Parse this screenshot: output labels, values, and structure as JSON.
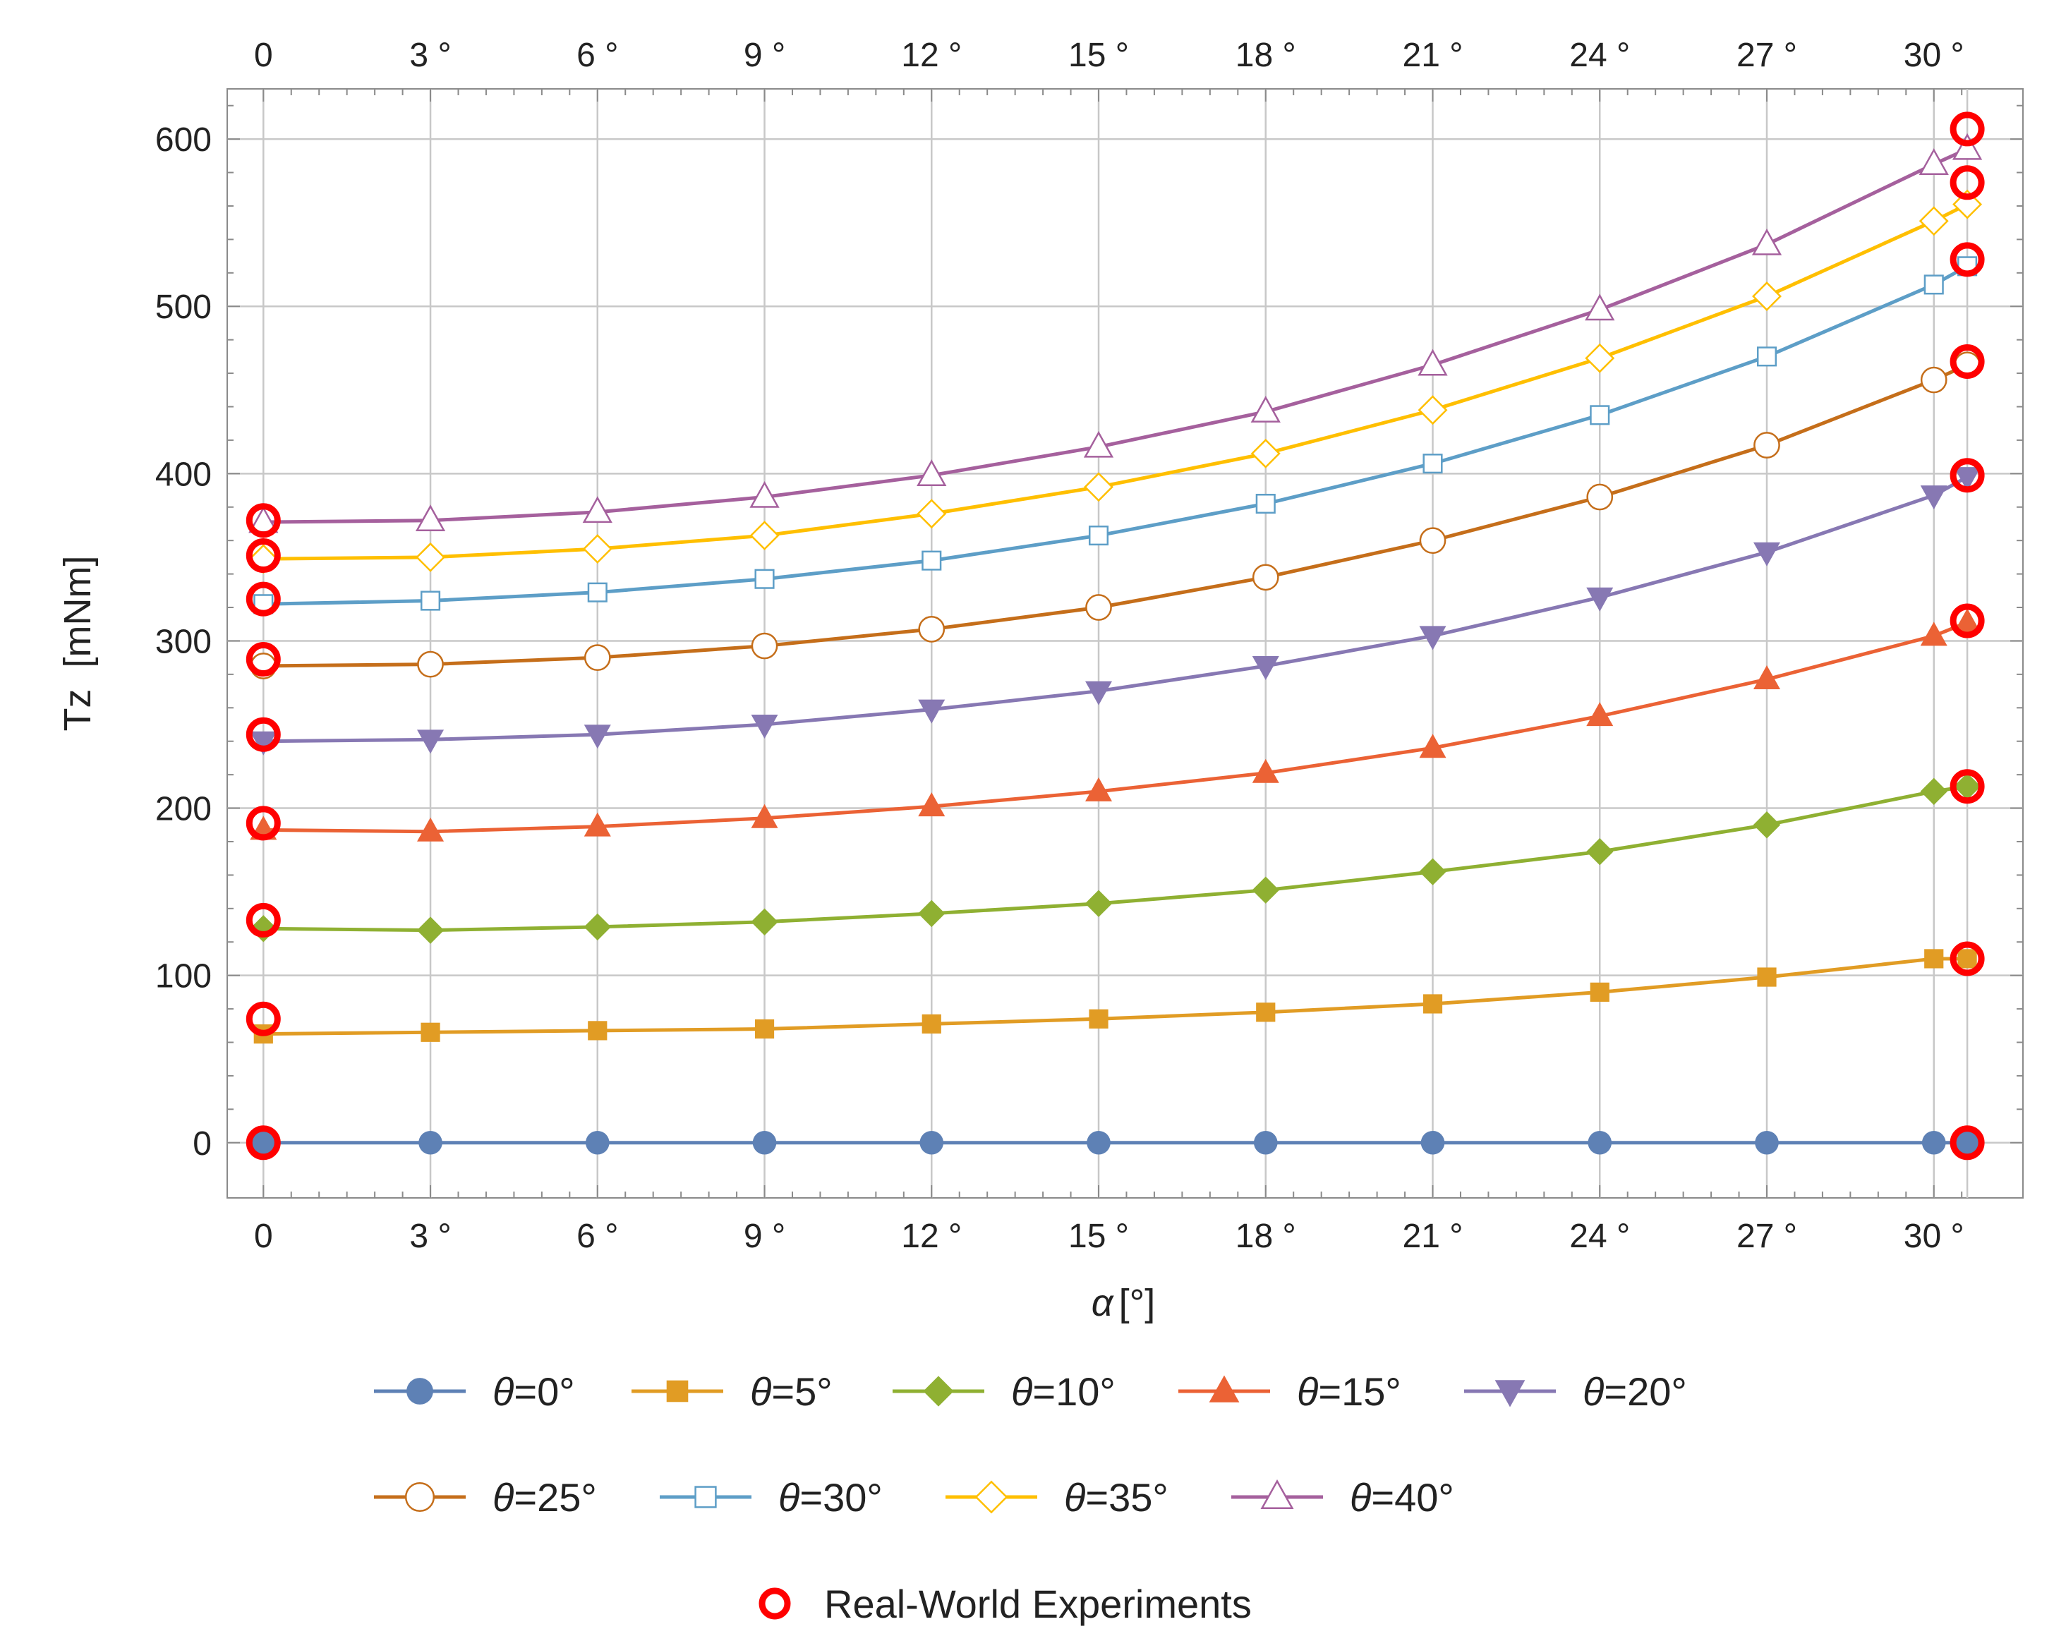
{
  "chart_data": {
    "type": "line",
    "title": "",
    "xlabel_symbol": "α",
    "xlabel_unit": "[°]",
    "ylabel": "Tz  [mNm]",
    "x": [
      0,
      3,
      6,
      9,
      12,
      15,
      18,
      21,
      24,
      27,
      30
    ],
    "x_tick_labels": [
      "0",
      "3 °",
      "6 °",
      "9 °",
      "12 °",
      "15 °",
      "18 °",
      "21 °",
      "24 °",
      "27 °",
      "30 °"
    ],
    "xlim": [
      -0.65,
      31.6
    ],
    "y_ticks": [
      0,
      100,
      200,
      300,
      400,
      500,
      600
    ],
    "y_tick_labels": [
      "0",
      "100",
      "200",
      "300",
      "400",
      "500",
      "600"
    ],
    "ylim": [
      -33,
      630
    ],
    "grid": true,
    "legend_position": "bottom",
    "series": [
      {
        "name": "θ=0°",
        "symbol": "θ",
        "label_suffix": "=0°",
        "color": "#5e81b5",
        "marker": "circle-filled",
        "values": [
          0,
          0,
          0,
          0,
          0,
          0,
          0,
          0,
          0,
          0,
          0
        ],
        "end_value": 0
      },
      {
        "name": "θ=5°",
        "symbol": "θ",
        "label_suffix": "=5°",
        "color": "#e19c24",
        "marker": "square-filled",
        "values": [
          65,
          66,
          67,
          68,
          71,
          74,
          78,
          83,
          90,
          99,
          110
        ],
        "end_value": 110
      },
      {
        "name": "θ=10°",
        "symbol": "θ",
        "label_suffix": "=10°",
        "color": "#8fb032",
        "marker": "diamond-filled",
        "values": [
          128,
          127,
          129,
          132,
          137,
          143,
          151,
          162,
          174,
          190,
          210
        ],
        "end_value": 213
      },
      {
        "name": "θ=15°",
        "symbol": "θ",
        "label_suffix": "=15°",
        "color": "#eb6235",
        "marker": "triangle-up-filled",
        "values": [
          187,
          186,
          189,
          194,
          201,
          210,
          221,
          236,
          255,
          277,
          303
        ],
        "end_value": 311
      },
      {
        "name": "θ=20°",
        "symbol": "θ",
        "label_suffix": "=20°",
        "color": "#8778b3",
        "marker": "triangle-down-filled",
        "values": [
          240,
          241,
          244,
          250,
          259,
          270,
          285,
          303,
          326,
          353,
          387
        ],
        "end_value": 398
      },
      {
        "name": "θ=25°",
        "symbol": "θ",
        "label_suffix": "=25°",
        "color": "#c56e1a",
        "marker": "circle-open",
        "values": [
          285,
          286,
          290,
          297,
          307,
          320,
          338,
          360,
          386,
          417,
          456
        ],
        "end_value": 465
      },
      {
        "name": "θ=30°",
        "symbol": "θ",
        "label_suffix": "=30°",
        "color": "#5d9ec7",
        "marker": "square-open",
        "values": [
          322,
          324,
          329,
          337,
          348,
          363,
          382,
          406,
          435,
          470,
          513
        ],
        "end_value": 524
      },
      {
        "name": "θ=35°",
        "symbol": "θ",
        "label_suffix": "=35°",
        "color": "#ffbf00",
        "marker": "diamond-open",
        "values": [
          349,
          350,
          355,
          363,
          376,
          392,
          412,
          438,
          469,
          506,
          551
        ],
        "end_value": 561
      },
      {
        "name": "θ=40°",
        "symbol": "θ",
        "label_suffix": "=40°",
        "color": "#a5609d",
        "marker": "triangle-up-open",
        "values": [
          371,
          372,
          377,
          386,
          399,
          416,
          437,
          465,
          498,
          537,
          585
        ],
        "end_value": 594
      }
    ],
    "experiments": {
      "name": "Real-World Experiments",
      "color": "#ff0000",
      "points": [
        {
          "x": 0,
          "y": 0
        },
        {
          "x": 0,
          "y": 74
        },
        {
          "x": 0,
          "y": 133
        },
        {
          "x": 0,
          "y": 191
        },
        {
          "x": 0,
          "y": 244
        },
        {
          "x": 0,
          "y": 289
        },
        {
          "x": 0,
          "y": 325
        },
        {
          "x": 0,
          "y": 351
        },
        {
          "x": 0,
          "y": 372
        },
        {
          "x": 30.6,
          "y": 0
        },
        {
          "x": 30.6,
          "y": 110
        },
        {
          "x": 30.6,
          "y": 213
        },
        {
          "x": 30.6,
          "y": 312
        },
        {
          "x": 30.6,
          "y": 399
        },
        {
          "x": 30.6,
          "y": 467
        },
        {
          "x": 30.6,
          "y": 528
        },
        {
          "x": 30.6,
          "y": 574
        },
        {
          "x": 30.6,
          "y": 606
        }
      ]
    },
    "end_x": 30.6
  }
}
